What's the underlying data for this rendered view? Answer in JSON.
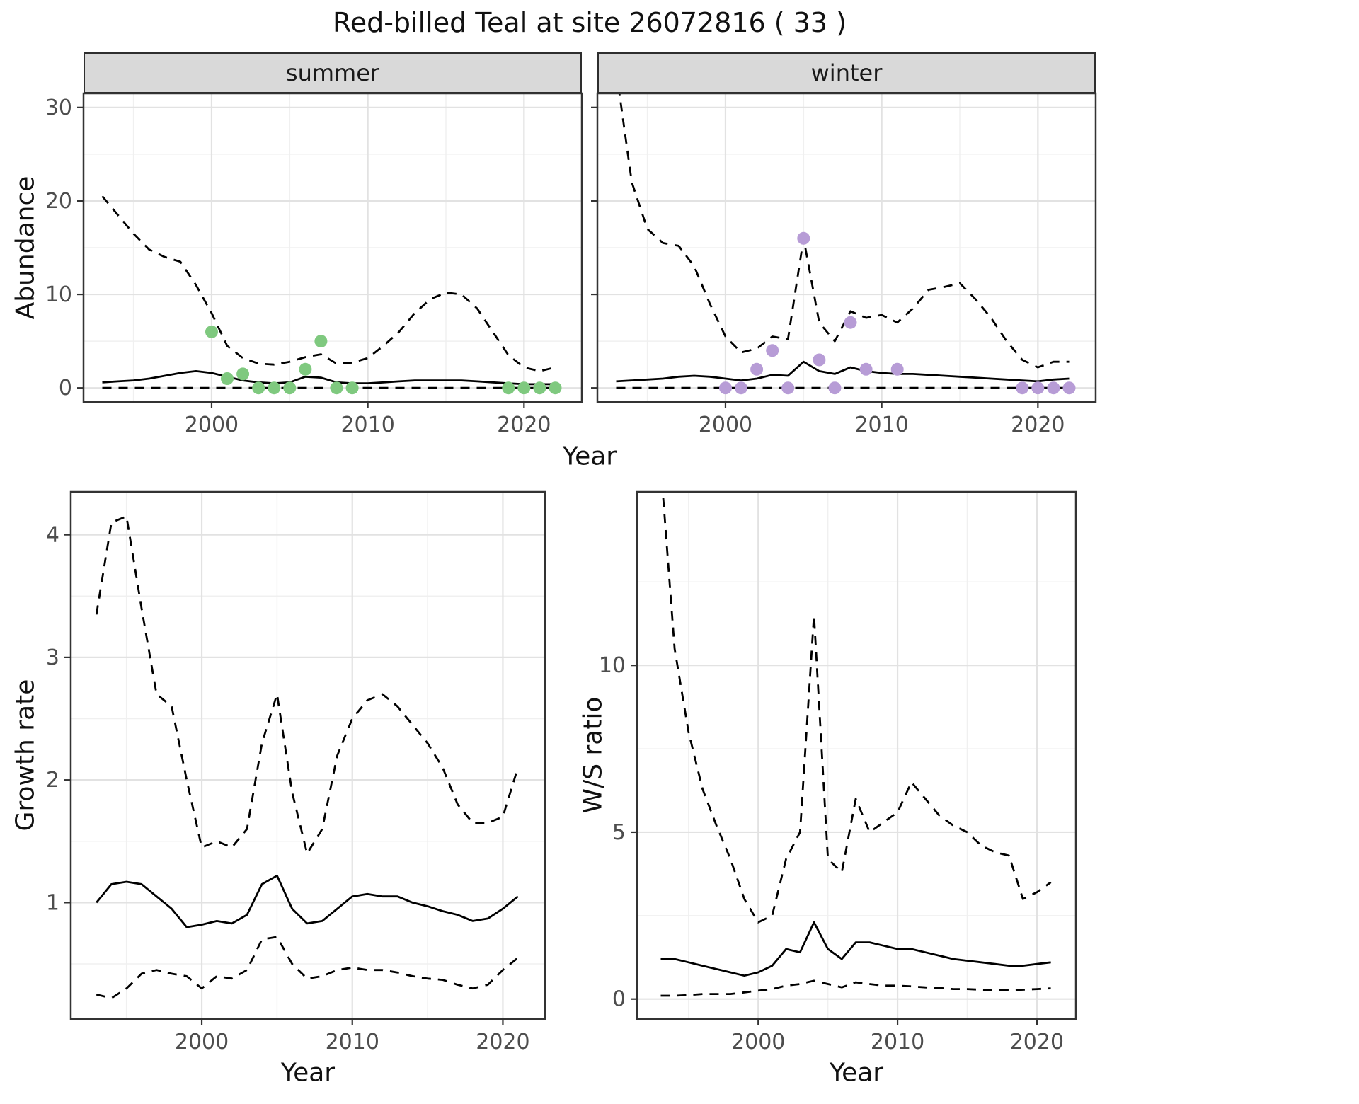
{
  "title": "Red-billed Teal at site 26072816 ( 33 )",
  "facets": {
    "summer": "summer",
    "winter": "winter"
  },
  "axis": {
    "abundance_ylabel": "Abundance",
    "top_xlabel": "Year",
    "growth_ylabel": "Growth rate",
    "growth_xlabel": "Year",
    "ws_ylabel": "W/S ratio",
    "ws_xlabel": "Year"
  },
  "colors": {
    "line": "#000000",
    "summer_points": "#7FC97F",
    "winter_points": "#B79CD6",
    "strip_bg": "#D9D9D9",
    "panel_border": "#333333",
    "grid_major": "#E2E2E2",
    "grid_minor": "#F0F0F0",
    "tick": "#333333",
    "tick_label": "#4D4D4D"
  },
  "chart_data": [
    {
      "id": "abundance_summer",
      "type": "line",
      "facet_label": "summer",
      "xlabel": "Year",
      "ylabel": "Abundance",
      "xlim": [
        1991.8,
        2023.7
      ],
      "ylim": [
        -1.5,
        31.5
      ],
      "xticks": [
        2000,
        2010,
        2020
      ],
      "yticks": [
        0,
        10,
        20,
        30
      ],
      "x": [
        1993,
        1994,
        1995,
        1996,
        1997,
        1998,
        1999,
        2000,
        2001,
        2002,
        2003,
        2004,
        2005,
        2006,
        2007,
        2008,
        2009,
        2010,
        2011,
        2012,
        2013,
        2014,
        2015,
        2016,
        2017,
        2018,
        2019,
        2020,
        2021,
        2022
      ],
      "series": [
        {
          "name": "upper_ci",
          "style": "dashed",
          "values": [
            20.5,
            18.5,
            16.5,
            14.8,
            14.0,
            13.5,
            11.0,
            8.0,
            4.5,
            3.2,
            2.6,
            2.5,
            2.8,
            3.3,
            3.6,
            2.6,
            2.7,
            3.2,
            4.5,
            6.0,
            8.0,
            9.5,
            10.2,
            10.0,
            8.5,
            6.0,
            3.5,
            2.2,
            1.8,
            2.2
          ]
        },
        {
          "name": "mean",
          "style": "solid",
          "values": [
            0.6,
            0.7,
            0.8,
            1.0,
            1.3,
            1.6,
            1.8,
            1.6,
            1.2,
            0.8,
            0.6,
            0.5,
            0.6,
            1.2,
            1.1,
            0.6,
            0.5,
            0.5,
            0.6,
            0.7,
            0.8,
            0.8,
            0.8,
            0.8,
            0.7,
            0.6,
            0.5,
            0.4,
            0.4,
            0.4
          ]
        },
        {
          "name": "lower_ci",
          "style": "dashed",
          "values": [
            0,
            0,
            0,
            0,
            0,
            0,
            0,
            0,
            0,
            0,
            0,
            0,
            0,
            0,
            0,
            0,
            0,
            0,
            0,
            0,
            0,
            0,
            0,
            0,
            0,
            0,
            0,
            0,
            0,
            0
          ]
        }
      ],
      "points": {
        "name": "observed_counts",
        "color_key": "summer_points",
        "x": [
          2000,
          2001,
          2002,
          2003,
          2004,
          2005,
          2006,
          2007,
          2008,
          2009,
          2019,
          2020,
          2021,
          2022
        ],
        "y": [
          6,
          1,
          1.5,
          0,
          0,
          0,
          2,
          5,
          0,
          0,
          0,
          0,
          0,
          0
        ]
      }
    },
    {
      "id": "abundance_winter",
      "type": "line",
      "facet_label": "winter",
      "xlabel": "Year",
      "ylabel": "Abundance",
      "xlim": [
        1991.8,
        2023.7
      ],
      "ylim": [
        -1.5,
        31.5
      ],
      "xticks": [
        2000,
        2010,
        2020
      ],
      "yticks": [
        0,
        10,
        20,
        30
      ],
      "x": [
        1993,
        1994,
        1995,
        1996,
        1997,
        1998,
        1999,
        2000,
        2001,
        2002,
        2003,
        2004,
        2005,
        2006,
        2007,
        2008,
        2009,
        2010,
        2011,
        2012,
        2013,
        2014,
        2015,
        2016,
        2017,
        2018,
        2019,
        2020,
        2021,
        2022
      ],
      "series": [
        {
          "name": "upper_ci",
          "style": "dashed",
          "values": [
            34,
            22,
            17,
            15.5,
            15.2,
            13.0,
            9.0,
            5.5,
            3.8,
            4.2,
            5.5,
            5.2,
            16.0,
            7.0,
            5.0,
            8.2,
            7.5,
            7.8,
            7.0,
            8.5,
            10.5,
            10.8,
            11.2,
            9.5,
            7.5,
            5.0,
            3.0,
            2.2,
            2.8,
            2.8
          ]
        },
        {
          "name": "mean",
          "style": "solid",
          "values": [
            0.7,
            0.8,
            0.9,
            1.0,
            1.2,
            1.3,
            1.2,
            1.0,
            0.8,
            1.0,
            1.4,
            1.3,
            2.8,
            1.8,
            1.5,
            2.2,
            1.8,
            1.6,
            1.5,
            1.5,
            1.4,
            1.3,
            1.2,
            1.1,
            1.0,
            0.9,
            0.8,
            0.7,
            0.9,
            1.0
          ]
        },
        {
          "name": "lower_ci",
          "style": "dashed",
          "values": [
            0,
            0,
            0,
            0,
            0,
            0,
            0,
            0,
            0,
            0,
            0,
            0,
            0,
            0,
            0,
            0,
            0,
            0,
            0,
            0,
            0,
            0,
            0,
            0,
            0,
            0,
            0,
            0,
            0,
            0
          ]
        }
      ],
      "points": {
        "name": "observed_counts",
        "color_key": "winter_points",
        "x": [
          2000,
          2001,
          2002,
          2003,
          2004,
          2005,
          2006,
          2007,
          2008,
          2009,
          2011,
          2019,
          2020,
          2021,
          2022
        ],
        "y": [
          0,
          0,
          2,
          4,
          0,
          16,
          3,
          0,
          7,
          2,
          2,
          0,
          0,
          0,
          0
        ]
      }
    },
    {
      "id": "growth_rate",
      "type": "line",
      "facet_label": "",
      "xlabel": "Year",
      "ylabel": "Growth rate",
      "xlim": [
        1991.3,
        2022.8
      ],
      "ylim": [
        0.05,
        4.35
      ],
      "xticks": [
        2000,
        2010,
        2020
      ],
      "yticks": [
        1,
        2,
        3,
        4
      ],
      "x": [
        1993,
        1994,
        1995,
        1996,
        1997,
        1998,
        1999,
        2000,
        2001,
        2002,
        2003,
        2004,
        2005,
        2006,
        2007,
        2008,
        2009,
        2010,
        2011,
        2012,
        2013,
        2014,
        2015,
        2016,
        2017,
        2018,
        2019,
        2020,
        2021
      ],
      "series": [
        {
          "name": "upper_ci",
          "style": "dashed",
          "values": [
            3.35,
            4.1,
            4.15,
            3.4,
            2.7,
            2.6,
            2.0,
            1.45,
            1.5,
            1.45,
            1.6,
            2.3,
            2.7,
            1.9,
            1.4,
            1.6,
            2.2,
            2.5,
            2.65,
            2.7,
            2.6,
            2.45,
            2.3,
            2.1,
            1.8,
            1.65,
            1.65,
            1.7,
            2.1
          ]
        },
        {
          "name": "mean",
          "style": "solid",
          "values": [
            1.0,
            1.15,
            1.17,
            1.15,
            1.05,
            0.95,
            0.8,
            0.82,
            0.85,
            0.83,
            0.9,
            1.15,
            1.22,
            0.95,
            0.83,
            0.85,
            0.95,
            1.05,
            1.07,
            1.05,
            1.05,
            1.0,
            0.97,
            0.93,
            0.9,
            0.85,
            0.87,
            0.95,
            1.05
          ]
        },
        {
          "name": "lower_ci",
          "style": "dashed",
          "values": [
            0.25,
            0.22,
            0.3,
            0.42,
            0.45,
            0.42,
            0.4,
            0.3,
            0.4,
            0.38,
            0.45,
            0.7,
            0.72,
            0.5,
            0.38,
            0.4,
            0.45,
            0.47,
            0.45,
            0.45,
            0.43,
            0.4,
            0.38,
            0.37,
            0.33,
            0.3,
            0.33,
            0.45,
            0.55
          ]
        }
      ]
    },
    {
      "id": "ws_ratio",
      "type": "line",
      "facet_label": "",
      "xlabel": "Year",
      "ylabel": "W/S ratio",
      "xlim": [
        1991.3,
        2022.8
      ],
      "ylim": [
        -0.6,
        15.2
      ],
      "xticks": [
        2000,
        2010,
        2020
      ],
      "yticks": [
        0,
        5,
        10
      ],
      "x": [
        1993,
        1994,
        1995,
        1996,
        1997,
        1998,
        1999,
        2000,
        2001,
        2002,
        2003,
        2004,
        2005,
        2006,
        2007,
        2008,
        2009,
        2010,
        2011,
        2012,
        2013,
        2014,
        2015,
        2016,
        2017,
        2018,
        2019,
        2020,
        2021
      ],
      "series": [
        {
          "name": "upper_ci",
          "style": "dashed",
          "values": [
            16,
            10.5,
            8.0,
            6.3,
            5.2,
            4.2,
            3.0,
            2.3,
            2.5,
            4.2,
            5.0,
            11.5,
            4.2,
            3.8,
            6.0,
            5.0,
            5.3,
            5.6,
            6.5,
            6.0,
            5.5,
            5.2,
            5.0,
            4.6,
            4.4,
            4.3,
            3.0,
            3.2,
            3.5
          ]
        },
        {
          "name": "mean",
          "style": "solid",
          "values": [
            1.2,
            1.2,
            1.1,
            1.0,
            0.9,
            0.8,
            0.7,
            0.8,
            1.0,
            1.5,
            1.4,
            2.3,
            1.5,
            1.2,
            1.7,
            1.7,
            1.6,
            1.5,
            1.5,
            1.4,
            1.3,
            1.2,
            1.15,
            1.1,
            1.05,
            1.0,
            1.0,
            1.05,
            1.1
          ]
        },
        {
          "name": "lower_ci",
          "style": "dashed",
          "values": [
            0.1,
            0.1,
            0.12,
            0.15,
            0.15,
            0.15,
            0.2,
            0.25,
            0.3,
            0.4,
            0.45,
            0.55,
            0.45,
            0.35,
            0.5,
            0.45,
            0.4,
            0.4,
            0.38,
            0.35,
            0.33,
            0.3,
            0.3,
            0.28,
            0.27,
            0.26,
            0.28,
            0.3,
            0.32
          ]
        }
      ]
    }
  ]
}
